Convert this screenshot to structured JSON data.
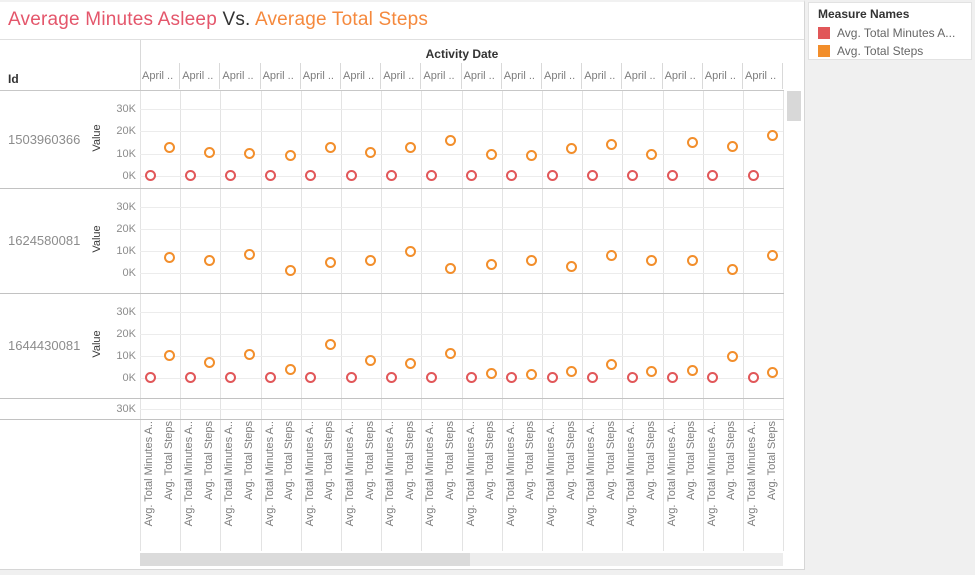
{
  "title": {
    "part_asleep": "Average Minutes Asleep",
    "part_vs": " Vs. ",
    "part_steps": "Average Total Steps"
  },
  "colors": {
    "asleep": "#e15759",
    "steps": "#f28e2b",
    "title_asleep": "#e4566b",
    "title_steps": "#f5893d"
  },
  "legend": {
    "title": "Measure Names",
    "items": [
      {
        "label": "Avg. Total Minutes A...",
        "color": "#e15759"
      },
      {
        "label": "Avg. Total Steps",
        "color": "#f28e2b"
      }
    ]
  },
  "header": {
    "row_dimension": "Id",
    "column_dimension": "Activity Date"
  },
  "axis": {
    "value_label": "Value",
    "ticks": [
      "30K",
      "20K",
      "10K",
      "0K"
    ],
    "partial_row_tick": "30K"
  },
  "footer_labels": [
    "Avg. Total Minutes A..",
    "Avg. Total Steps"
  ],
  "chart_data": {
    "type": "scatter",
    "unit": "thousands",
    "ylim": [
      0,
      30
    ],
    "columns": [
      "April ..",
      "April ..",
      "April ..",
      "April ..",
      "April ..",
      "April ..",
      "April ..",
      "April ..",
      "April ..",
      "April ..",
      "April ..",
      "April ..",
      "April ..",
      "April ..",
      "April ..",
      "April .."
    ],
    "rows": [
      {
        "id": "1503960366",
        "avg_total_minutes_asleep_k": [
          0.4,
          0.4,
          0.4,
          0.4,
          0.4,
          0.4,
          0.4,
          0.4,
          0.4,
          0.4,
          0.4,
          0.4,
          0.4,
          0.4,
          0.4,
          0.4
        ],
        "avg_total_steps_k": [
          12.9,
          10.5,
          9.9,
          9.3,
          12.7,
          10.3,
          12.7,
          16.0,
          9.7,
          9.1,
          12.2,
          13.9,
          9.4,
          14.8,
          13.3,
          18.1
        ]
      },
      {
        "id": "1624580081",
        "avg_total_minutes_asleep_k": null,
        "avg_total_steps_k": [
          7.0,
          6.0,
          8.3,
          1.2,
          4.8,
          5.7,
          9.9,
          2.2,
          4.2,
          6.0,
          3.1,
          7.9,
          5.8,
          6.0,
          1.9,
          7.9
        ]
      },
      {
        "id": "1644430081",
        "avg_total_minutes_asleep_k": [
          0.3,
          0.3,
          0.3,
          0.3,
          0.3,
          0.3,
          0.3,
          0.3,
          0.3,
          0.3,
          0.3,
          0.3,
          0.3,
          0.3,
          0.3,
          0.3
        ],
        "avg_total_steps_k": [
          10.2,
          7.3,
          10.6,
          4.1,
          15.2,
          8.0,
          6.5,
          11.1,
          2.3,
          1.8,
          2.9,
          6.4,
          3.0,
          3.5,
          9.8,
          2.7
        ]
      }
    ],
    "partial_fourth_row_visible": true
  }
}
